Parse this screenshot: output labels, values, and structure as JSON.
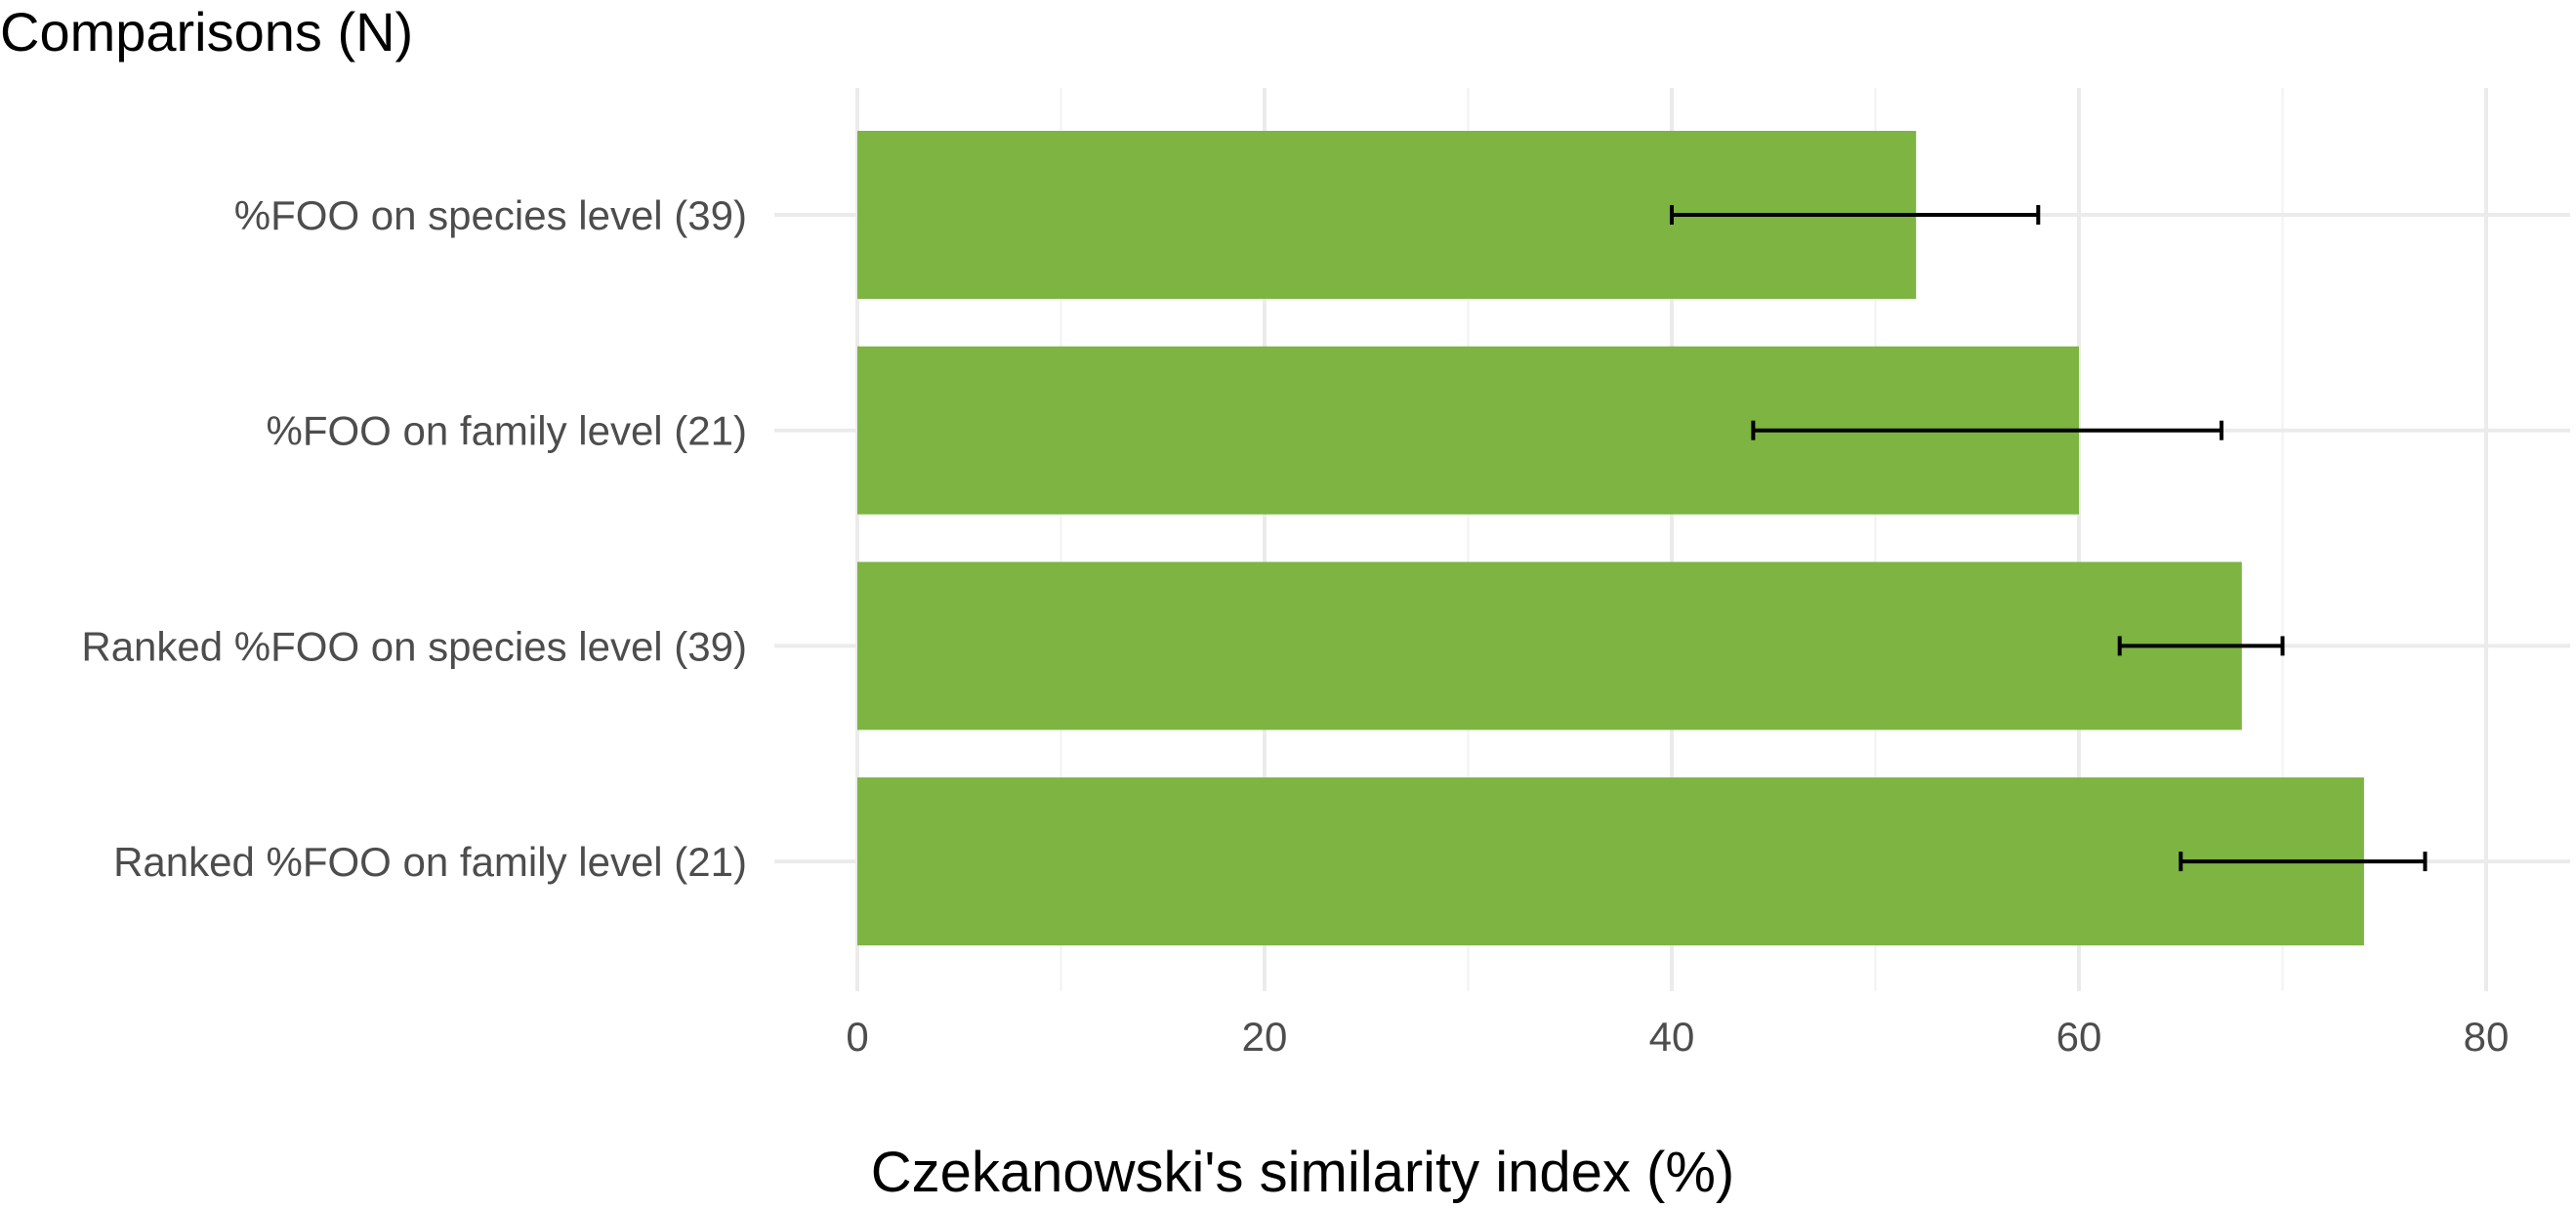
{
  "chart_data": {
    "type": "bar",
    "orientation": "horizontal",
    "title": "Comparisons (N)",
    "xlabel": "Czekanowski's similarity index (%)",
    "ylabel": "Comparisons (N)",
    "categories": [
      "%FOO on species level (39)",
      "%FOO on family level (21)",
      "Ranked %FOO on species level (39)",
      "Ranked %FOO on family level (21)"
    ],
    "values": [
      52,
      60,
      68,
      74
    ],
    "error_low": [
      40,
      44,
      62,
      65
    ],
    "error_high": [
      58,
      67,
      70,
      77
    ],
    "xlim": [
      0,
      83
    ],
    "xticks": [
      0,
      20,
      40,
      60,
      80
    ],
    "xtick_labels": [
      "0",
      "20",
      "40",
      "60",
      "80"
    ],
    "grid": true,
    "bar_color": "#7db442",
    "errorbar_color": "#000000"
  }
}
